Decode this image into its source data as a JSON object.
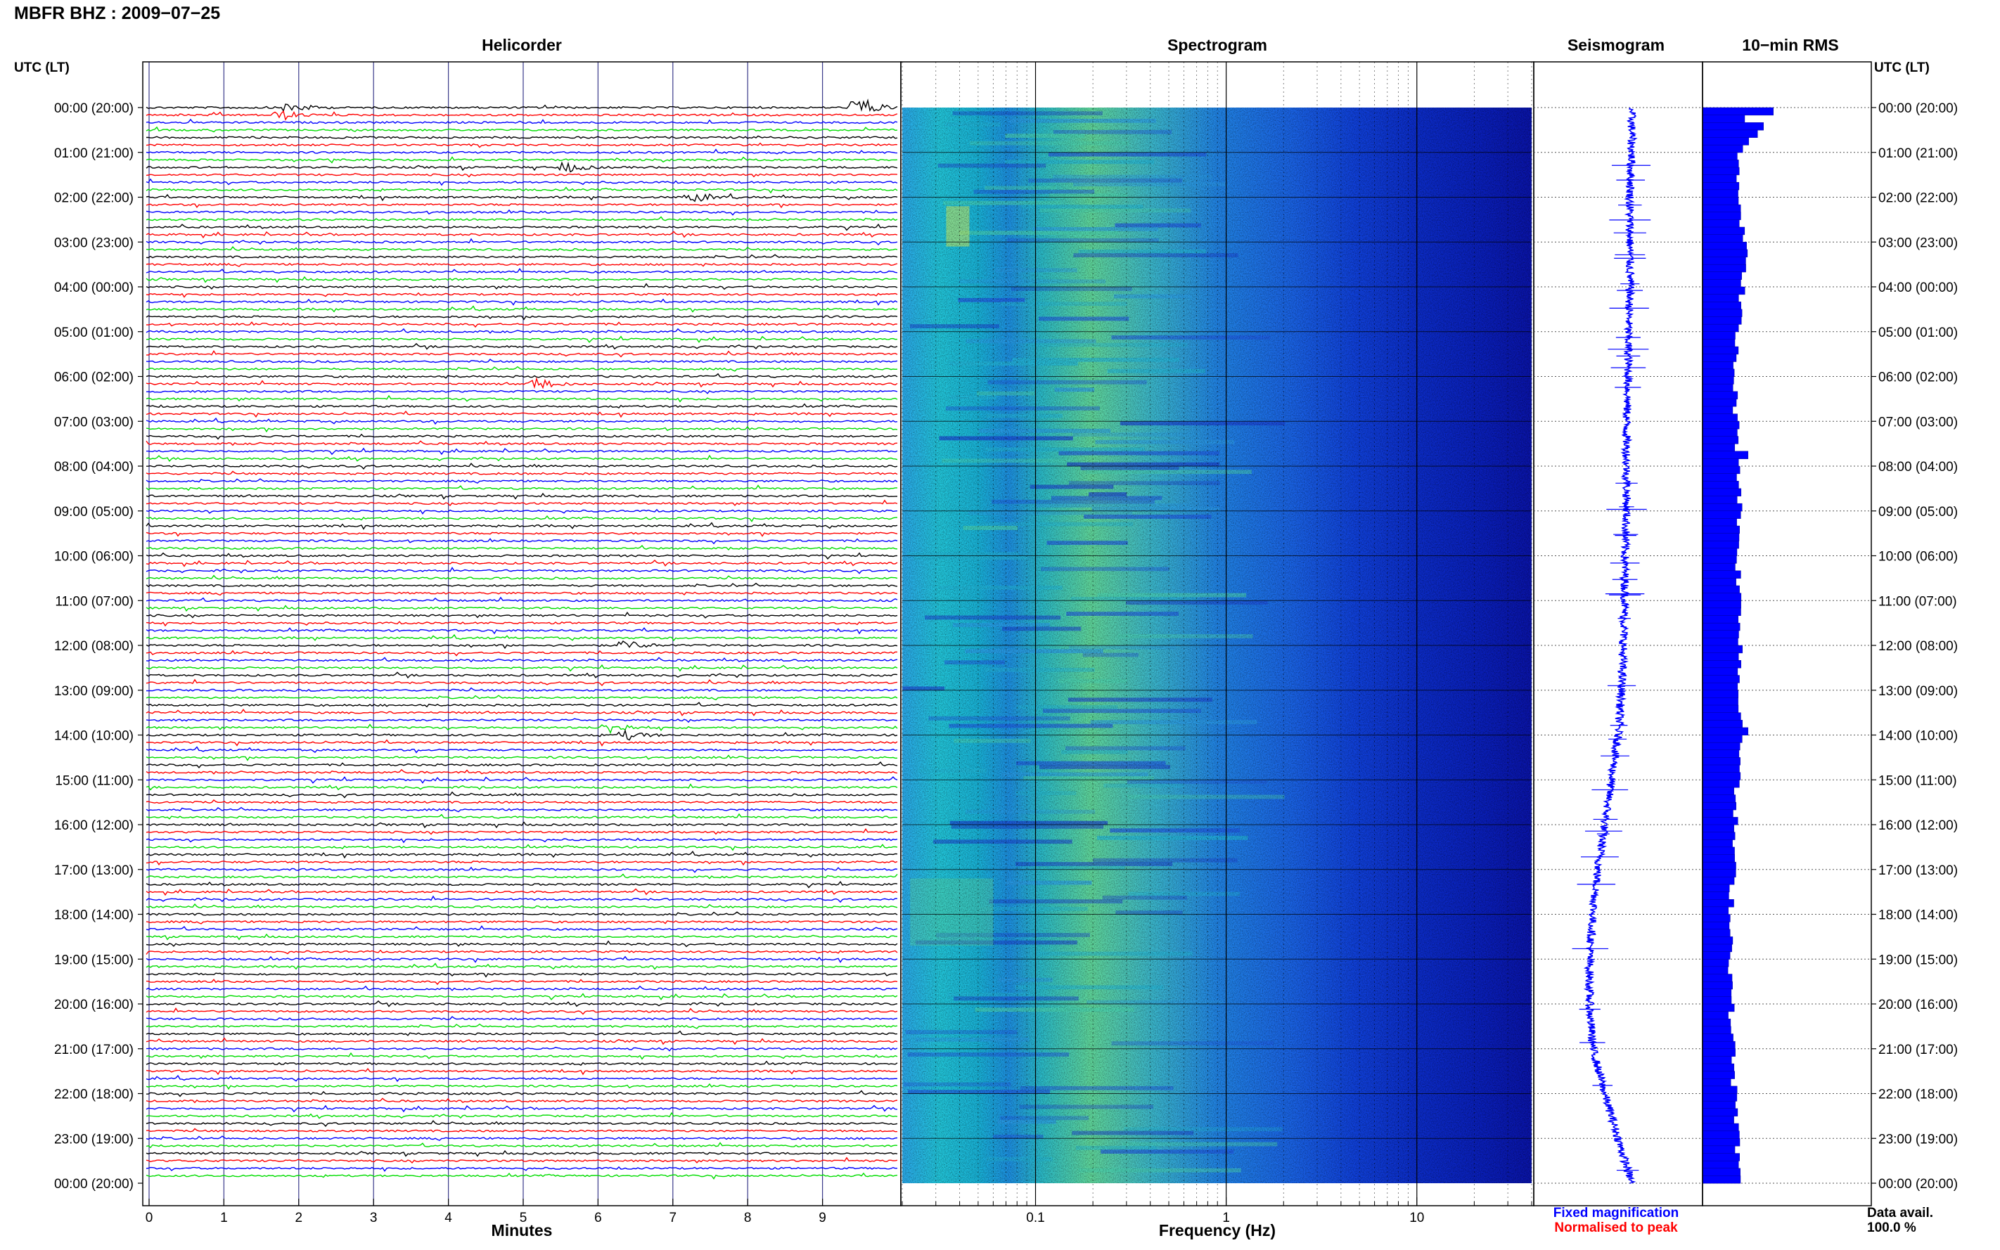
{
  "header": {
    "title": "MBFR BHZ : 2009−07−25"
  },
  "chart_data": [
    {
      "type": "line",
      "panel": "helicorder",
      "title": "Helicorder",
      "xlabel": "Minutes",
      "ylabel": "UTC (LT)",
      "x_ticks": [
        "0",
        "1",
        "2",
        "3",
        "4",
        "5",
        "6",
        "7",
        "8",
        "9"
      ],
      "xlim": [
        0,
        10
      ],
      "line_minutes": 10,
      "lines_count": 144,
      "trace_colors": [
        "#000000",
        "#ff0000",
        "#0000ff",
        "#00dd00"
      ],
      "row_labels": [
        "00:00 (20:00)",
        "01:00 (21:00)",
        "02:00 (22:00)",
        "03:00 (23:00)",
        "04:00 (00:00)",
        "05:00 (01:00)",
        "06:00 (02:00)",
        "07:00 (03:00)",
        "08:00 (04:00)",
        "09:00 (05:00)",
        "10:00 (06:00)",
        "11:00 (07:00)",
        "12:00 (08:00)",
        "13:00 (09:00)",
        "14:00 (10:00)",
        "15:00 (11:00)",
        "16:00 (12:00)",
        "17:00 (13:00)",
        "18:00 (14:00)",
        "19:00 (15:00)",
        "20:00 (16:00)",
        "21:00 (17:00)",
        "22:00 (18:00)",
        "23:00 (19:00)",
        "00:00 (20:00)"
      ],
      "events": [
        {
          "hour": 0.0,
          "minute": 9.5,
          "amp": 3.2
        },
        {
          "hour": 0.0,
          "minute": 1.9,
          "amp": 1.5
        },
        {
          "hour": 0.17,
          "minute": 1.8,
          "amp": 1.2
        },
        {
          "hour": 1.33,
          "minute": 5.6,
          "amp": 1.2
        },
        {
          "hour": 2.0,
          "minute": 7.3,
          "amp": 1.3
        },
        {
          "hour": 6.17,
          "minute": 5.2,
          "amp": 1.6
        },
        {
          "hour": 12.0,
          "minute": 6.4,
          "amp": 1.3
        },
        {
          "hour": 13.83,
          "minute": 6.2,
          "amp": 1.8
        },
        {
          "hour": 14.0,
          "minute": 6.4,
          "amp": 1.2
        }
      ]
    },
    {
      "type": "heatmap",
      "panel": "spectrogram",
      "title": "Spectrogram",
      "xlabel": "Frequency (Hz)",
      "x_scale": "log",
      "xlim": [
        0.02,
        40
      ],
      "x_ticks": [
        "0.1",
        "1",
        "10"
      ],
      "colormap": "jet"
    },
    {
      "type": "line",
      "panel": "seismogram",
      "title": "Seismogram",
      "drift": [
        0.58,
        0.58,
        0.57,
        0.57,
        0.57,
        0.56,
        0.56,
        0.55,
        0.55,
        0.55,
        0.54,
        0.54,
        0.53,
        0.52,
        0.5,
        0.46,
        0.42,
        0.38,
        0.35,
        0.33,
        0.33,
        0.35,
        0.42,
        0.5,
        0.58
      ],
      "legend": [
        {
          "label": "Fixed magnification",
          "color": "#0000ff"
        },
        {
          "label": "Normalised to peak",
          "color": "#ff0000"
        }
      ]
    },
    {
      "type": "bar",
      "panel": "rms",
      "title": "10−min RMS",
      "ylabel": "UTC (LT)",
      "orientation": "horizontal",
      "hourly_profile": [
        0.42,
        0.22,
        0.22,
        0.25,
        0.24,
        0.2,
        0.19,
        0.2,
        0.22,
        0.22,
        0.21,
        0.22,
        0.23,
        0.21,
        0.25,
        0.2,
        0.19,
        0.18,
        0.17,
        0.17,
        0.17,
        0.18,
        0.19,
        0.21,
        0.21
      ],
      "peaks": [
        {
          "hour": 0.0,
          "value": 0.42
        },
        {
          "hour": 0.17,
          "value": 0.25
        },
        {
          "hour": 7.67,
          "value": 0.27
        },
        {
          "hour": 13.83,
          "value": 0.27
        }
      ]
    }
  ],
  "footer": {
    "data_avail_label": "Data avail.",
    "data_avail_value": "100.0 %"
  }
}
